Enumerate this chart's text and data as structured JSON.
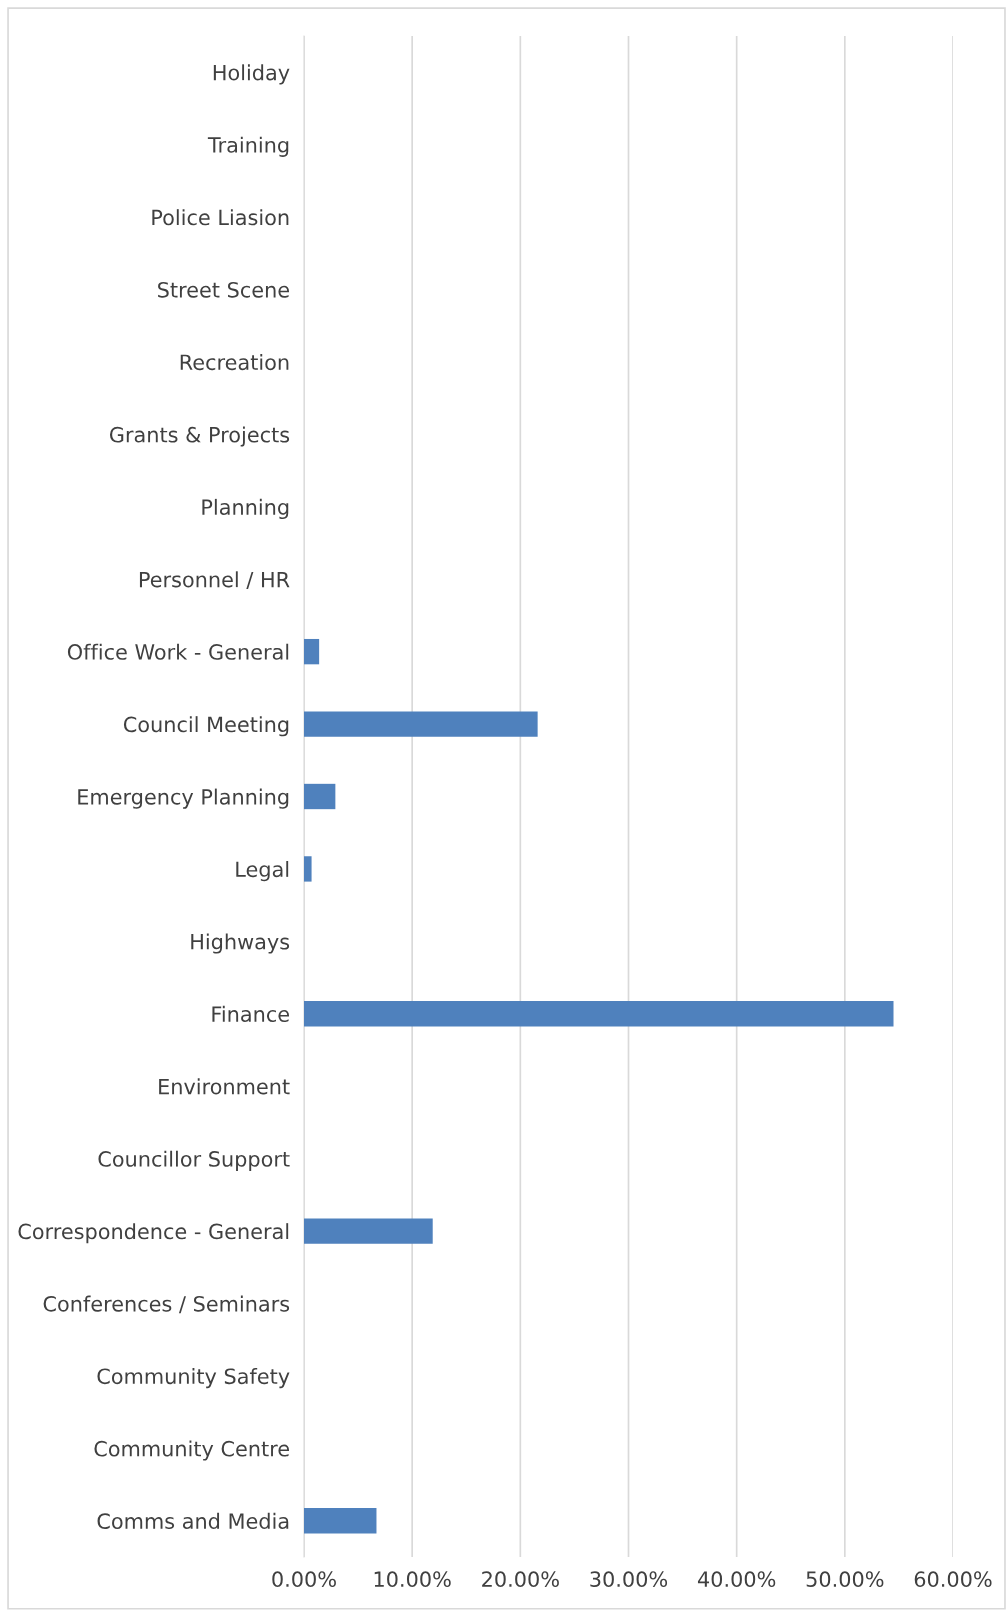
{
  "chart_data": {
    "type": "bar",
    "orientation": "horizontal",
    "categories": [
      "Holiday",
      "Training",
      "Police Liasion",
      "Street Scene",
      "Recreation",
      "Grants & Projects",
      "Planning",
      "Personnel / HR",
      "Office Work - General",
      "Council Meeting",
      "Emergency Planning",
      "Legal",
      "Highways",
      "Finance",
      "Environment",
      "Councillor Support",
      "Correspondence - General",
      "Conferences / Seminars",
      "Community Safety",
      "Community Centre",
      "Comms and Media"
    ],
    "values": [
      0,
      0,
      0,
      0,
      0,
      0,
      0,
      0,
      1.4,
      21.6,
      2.9,
      0.7,
      0,
      54.5,
      0,
      0,
      11.9,
      0,
      0,
      0,
      6.7
    ],
    "color": "#4f81bd",
    "xlim": [
      0,
      60
    ],
    "xticks": [
      {
        "value": 0,
        "label": "0.00%"
      },
      {
        "value": 10,
        "label": "10.00%"
      },
      {
        "value": 20,
        "label": "20.00%"
      },
      {
        "value": 30,
        "label": "30.00%"
      },
      {
        "value": 40,
        "label": "40.00%"
      },
      {
        "value": 50,
        "label": "50.00%"
      },
      {
        "value": 60,
        "label": "60.00%"
      }
    ],
    "grid": "x"
  }
}
